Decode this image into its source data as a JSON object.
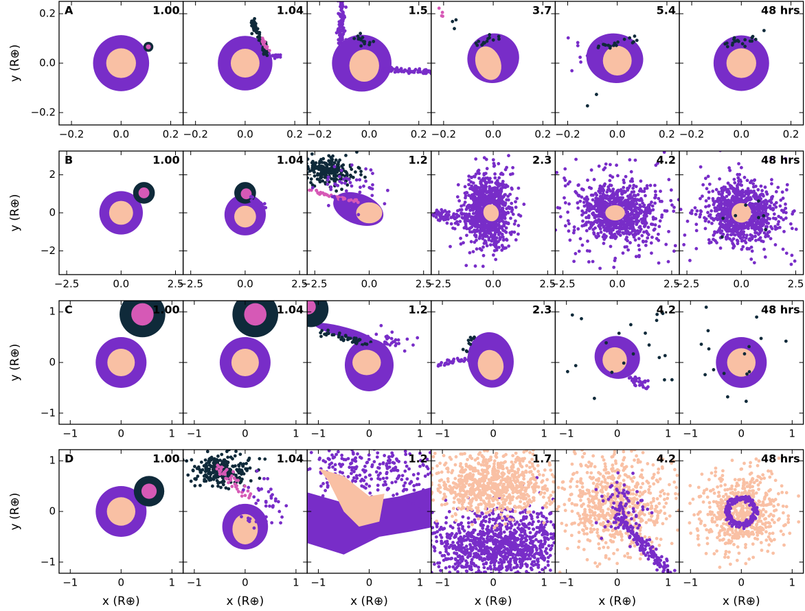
{
  "chart_data": [
    {
      "type": "scatter",
      "panel_label": "A",
      "time_label": "1.00",
      "ylabel": "y (R⊕)",
      "xlim": [
        -0.25,
        0.25
      ],
      "ylim": [
        -0.25,
        0.25
      ],
      "xticks": [
        {
          "value": -0.2,
          "label": "−0.2"
        },
        {
          "value": 0,
          "label": "0.0"
        },
        0.2
      ],
      "yticks": [
        {
          "value": -0.2,
          "label": "−0.2"
        },
        {
          "value": 0,
          "label": "0.0"
        },
        0.2
      ]
    },
    {
      "type": "scatter",
      "time_label": "1.04",
      "xlim": [
        -0.25,
        0.25
      ],
      "ylim": [
        -0.25,
        0.25
      ],
      "xticks": [
        {
          "value": -0.2,
          "label": "−0.2"
        },
        {
          "value": 0,
          "label": "0.0"
        },
        0.2
      ]
    },
    {
      "type": "scatter",
      "time_label": "1.5",
      "xlim": [
        -0.25,
        0.25
      ],
      "ylim": [
        -0.25,
        0.25
      ],
      "xticks": [
        {
          "value": -0.2,
          "label": "−0.2"
        },
        {
          "value": 0,
          "label": "0.0"
        },
        0.2
      ]
    },
    {
      "type": "scatter",
      "time_label": "3.7",
      "xlim": [
        -0.25,
        0.25
      ],
      "ylim": [
        -0.25,
        0.25
      ],
      "xticks": [
        {
          "value": -0.2,
          "label": "−0.2"
        },
        {
          "value": 0,
          "label": "0.0"
        },
        0.2
      ]
    },
    {
      "type": "scatter",
      "time_label": "5.4",
      "xlim": [
        -0.25,
        0.25
      ],
      "ylim": [
        -0.25,
        0.25
      ],
      "xticks": [
        {
          "value": -0.2,
          "label": "−0.2"
        },
        {
          "value": 0,
          "label": "0.0"
        },
        0.2
      ]
    },
    {
      "type": "scatter",
      "time_label": "48 hrs",
      "xlim": [
        -0.25,
        0.25
      ],
      "ylim": [
        -0.25,
        0.25
      ],
      "xticks": [
        {
          "value": -0.2,
          "label": "−0.2"
        },
        {
          "value": 0,
          "label": "0.0"
        },
        0.2
      ]
    },
    {
      "type": "scatter",
      "panel_label": "B",
      "time_label": "1.00",
      "ylabel": "y (R⊕)",
      "xlim": [
        -2.85,
        2.85
      ],
      "ylim": [
        -3.25,
        3.25
      ],
      "xticks": [
        {
          "value": -2.5,
          "label": "−2.5"
        },
        {
          "value": 0,
          "label": "0.0"
        },
        2.5
      ],
      "yticks": [
        {
          "value": -2,
          "label": "−2"
        },
        0,
        2
      ]
    },
    {
      "type": "scatter",
      "time_label": "1.04",
      "xlim": [
        -2.85,
        2.85
      ],
      "ylim": [
        -3.25,
        3.25
      ],
      "xticks": [
        {
          "value": -2.5,
          "label": "−2.5"
        },
        {
          "value": 0,
          "label": "0.0"
        },
        2.5
      ]
    },
    {
      "type": "scatter",
      "time_label": "1.2",
      "xlim": [
        -2.85,
        2.85
      ],
      "ylim": [
        -3.25,
        3.25
      ],
      "xticks": [
        {
          "value": -2.5,
          "label": "−2.5"
        },
        {
          "value": 0,
          "label": "0.0"
        },
        2.5
      ]
    },
    {
      "type": "scatter",
      "time_label": "2.3",
      "xlim": [
        -2.85,
        2.85
      ],
      "ylim": [
        -3.25,
        3.25
      ],
      "xticks": [
        {
          "value": -2.5,
          "label": "−2.5"
        },
        {
          "value": 0,
          "label": "0.0"
        },
        2.5
      ]
    },
    {
      "type": "scatter",
      "time_label": "4.2",
      "xlim": [
        -2.85,
        2.85
      ],
      "ylim": [
        -3.25,
        3.25
      ],
      "xticks": [
        {
          "value": -2.5,
          "label": "−2.5"
        },
        {
          "value": 0,
          "label": "0.0"
        },
        2.5
      ]
    },
    {
      "type": "scatter",
      "time_label": "48 hrs",
      "xlim": [
        -2.85,
        2.85
      ],
      "ylim": [
        -3.25,
        3.25
      ],
      "xticks": [
        {
          "value": -2.5,
          "label": "−2.5"
        },
        {
          "value": 0,
          "label": "0.0"
        },
        2.5
      ]
    },
    {
      "type": "scatter",
      "panel_label": "C",
      "time_label": "1.00",
      "ylabel": "y (R⊕)",
      "xlim": [
        -1.22,
        1.22
      ],
      "ylim": [
        -1.22,
        1.22
      ],
      "xticks": [
        {
          "value": -1,
          "label": "−1"
        },
        0,
        1
      ],
      "yticks": [
        {
          "value": -1,
          "label": "−1"
        },
        0,
        1
      ]
    },
    {
      "type": "scatter",
      "time_label": "1.04",
      "xlim": [
        -1.22,
        1.22
      ],
      "ylim": [
        -1.22,
        1.22
      ],
      "xticks": [
        {
          "value": -1,
          "label": "−1"
        },
        0,
        1
      ]
    },
    {
      "type": "scatter",
      "time_label": "1.2",
      "xlim": [
        -1.22,
        1.22
      ],
      "ylim": [
        -1.22,
        1.22
      ],
      "xticks": [
        {
          "value": -1,
          "label": "−1"
        },
        0,
        1
      ]
    },
    {
      "type": "scatter",
      "time_label": "2.3",
      "xlim": [
        -1.22,
        1.22
      ],
      "ylim": [
        -1.22,
        1.22
      ],
      "xticks": [
        {
          "value": -1,
          "label": "−1"
        },
        0,
        1
      ]
    },
    {
      "type": "scatter",
      "time_label": "4.2",
      "xlim": [
        -1.22,
        1.22
      ],
      "ylim": [
        -1.22,
        1.22
      ],
      "xticks": [
        {
          "value": -1,
          "label": "−1"
        },
        0,
        1
      ]
    },
    {
      "type": "scatter",
      "time_label": "48 hrs",
      "xlim": [
        -1.22,
        1.22
      ],
      "ylim": [
        -1.22,
        1.22
      ],
      "xticks": [
        {
          "value": -1,
          "label": "−1"
        },
        0,
        1
      ]
    },
    {
      "type": "scatter",
      "panel_label": "D",
      "time_label": "1.00",
      "ylabel": "y (R⊕)",
      "xlabel": "x (R⊕)",
      "xlim": [
        -1.22,
        1.22
      ],
      "ylim": [
        -1.22,
        1.22
      ],
      "xticks": [
        {
          "value": -1,
          "label": "−1"
        },
        0,
        1
      ],
      "yticks": [
        {
          "value": -1,
          "label": "−1"
        },
        0,
        1
      ]
    },
    {
      "type": "scatter",
      "time_label": "1.04",
      "xlabel": "x (R⊕)",
      "xlim": [
        -1.22,
        1.22
      ],
      "ylim": [
        -1.22,
        1.22
      ],
      "xticks": [
        {
          "value": -1,
          "label": "−1"
        },
        0,
        1
      ]
    },
    {
      "type": "scatter",
      "time_label": "1.2",
      "xlabel": "x (R⊕)",
      "xlim": [
        -1.22,
        1.22
      ],
      "ylim": [
        -1.22,
        1.22
      ],
      "xticks": [
        {
          "value": -1,
          "label": "−1"
        },
        0,
        1
      ]
    },
    {
      "type": "scatter",
      "time_label": "1.7",
      "xlabel": "x (R⊕)",
      "xlim": [
        -1.22,
        1.22
      ],
      "ylim": [
        -1.22,
        1.22
      ],
      "xticks": [
        {
          "value": -1,
          "label": "−1"
        },
        0,
        1
      ]
    },
    {
      "type": "scatter",
      "time_label": "4.2",
      "xlabel": "x (R⊕)",
      "xlim": [
        -1.22,
        1.22
      ],
      "ylim": [
        -1.22,
        1.22
      ],
      "xticks": [
        {
          "value": -1,
          "label": "−1"
        },
        0,
        1
      ]
    },
    {
      "type": "scatter",
      "time_label": "48 hrs",
      "xlabel": "x (R⊕)",
      "xlim": [
        -1.22,
        1.22
      ],
      "ylim": [
        -1.22,
        1.22
      ],
      "xticks": [
        {
          "value": -1,
          "label": "−1"
        },
        0,
        1
      ]
    }
  ]
}
